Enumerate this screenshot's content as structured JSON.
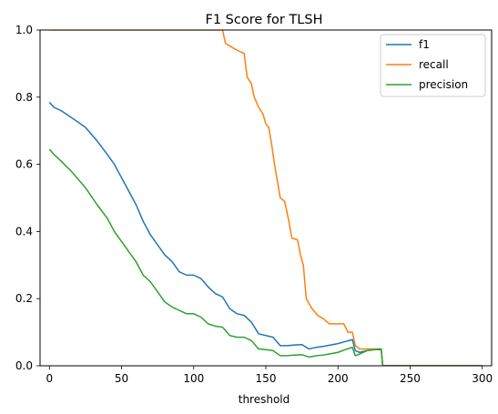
{
  "chart_data": {
    "type": "line",
    "title": "F1 Score for TLSH",
    "xlabel": "threshold",
    "ylabel": "",
    "xlim": [
      -6.5,
      306.5
    ],
    "ylim": [
      0,
      1
    ],
    "x_ticks": [
      0,
      50,
      100,
      150,
      200,
      250,
      300
    ],
    "y_ticks": [
      0.0,
      0.2,
      0.4,
      0.6,
      0.8,
      1.0
    ],
    "x_tick_labels": [
      "0",
      "50",
      "100",
      "150",
      "200",
      "250",
      "300"
    ],
    "y_tick_labels": [
      "0.0",
      "0.2",
      "0.4",
      "0.6",
      "0.8",
      "1.0"
    ],
    "grid": false,
    "legend_position": "top-right",
    "series": [
      {
        "name": "f1",
        "color": "#1f77b4",
        "points": [
          [
            0,
            0.785
          ],
          [
            3,
            0.77
          ],
          [
            8,
            0.76
          ],
          [
            15,
            0.74
          ],
          [
            25,
            0.71
          ],
          [
            33,
            0.67
          ],
          [
            40,
            0.63
          ],
          [
            45,
            0.6
          ],
          [
            50,
            0.56
          ],
          [
            55,
            0.52
          ],
          [
            60,
            0.48
          ],
          [
            65,
            0.43
          ],
          [
            70,
            0.39
          ],
          [
            75,
            0.36
          ],
          [
            80,
            0.33
          ],
          [
            85,
            0.31
          ],
          [
            90,
            0.28
          ],
          [
            95,
            0.27
          ],
          [
            100,
            0.27
          ],
          [
            105,
            0.26
          ],
          [
            110,
            0.235
          ],
          [
            115,
            0.215
          ],
          [
            120,
            0.205
          ],
          [
            125,
            0.17
          ],
          [
            130,
            0.155
          ],
          [
            135,
            0.15
          ],
          [
            140,
            0.13
          ],
          [
            145,
            0.095
          ],
          [
            150,
            0.09
          ],
          [
            155,
            0.085
          ],
          [
            160,
            0.06
          ],
          [
            165,
            0.06
          ],
          [
            170,
            0.062
          ],
          [
            175,
            0.063
          ],
          [
            180,
            0.05
          ],
          [
            185,
            0.055
          ],
          [
            190,
            0.058
          ],
          [
            195,
            0.062
          ],
          [
            200,
            0.066
          ],
          [
            205,
            0.072
          ],
          [
            210,
            0.078
          ],
          [
            212,
            0.045
          ],
          [
            215,
            0.04
          ],
          [
            220,
            0.045
          ],
          [
            225,
            0.048
          ],
          [
            230,
            0.048
          ],
          [
            231,
            0.0
          ],
          [
            300,
            0.0
          ]
        ]
      },
      {
        "name": "recall",
        "color": "#ff7f0e",
        "points": [
          [
            0,
            1.0
          ],
          [
            120,
            1.0
          ],
          [
            122,
            0.96
          ],
          [
            126,
            0.95
          ],
          [
            130,
            0.94
          ],
          [
            135,
            0.93
          ],
          [
            137,
            0.86
          ],
          [
            140,
            0.84
          ],
          [
            142,
            0.8
          ],
          [
            145,
            0.77
          ],
          [
            148,
            0.75
          ],
          [
            150,
            0.72
          ],
          [
            152,
            0.71
          ],
          [
            154,
            0.66
          ],
          [
            156,
            0.6
          ],
          [
            158,
            0.55
          ],
          [
            160,
            0.5
          ],
          [
            163,
            0.49
          ],
          [
            166,
            0.43
          ],
          [
            168,
            0.38
          ],
          [
            172,
            0.375
          ],
          [
            174,
            0.33
          ],
          [
            176,
            0.3
          ],
          [
            178,
            0.2
          ],
          [
            182,
            0.17
          ],
          [
            186,
            0.15
          ],
          [
            190,
            0.14
          ],
          [
            194,
            0.125
          ],
          [
            200,
            0.125
          ],
          [
            204,
            0.125
          ],
          [
            207,
            0.1
          ],
          [
            210,
            0.1
          ],
          [
            212,
            0.06
          ],
          [
            215,
            0.05
          ],
          [
            220,
            0.05
          ],
          [
            225,
            0.05
          ],
          [
            230,
            0.05
          ],
          [
            231,
            0.0
          ],
          [
            300,
            0.0
          ]
        ]
      },
      {
        "name": "precision",
        "color": "#2ca02c",
        "points": [
          [
            0,
            0.645
          ],
          [
            3,
            0.63
          ],
          [
            8,
            0.61
          ],
          [
            15,
            0.58
          ],
          [
            25,
            0.53
          ],
          [
            33,
            0.48
          ],
          [
            40,
            0.44
          ],
          [
            45,
            0.4
          ],
          [
            50,
            0.37
          ],
          [
            55,
            0.34
          ],
          [
            60,
            0.31
          ],
          [
            65,
            0.27
          ],
          [
            70,
            0.25
          ],
          [
            75,
            0.22
          ],
          [
            80,
            0.19
          ],
          [
            85,
            0.175
          ],
          [
            90,
            0.165
          ],
          [
            95,
            0.155
          ],
          [
            100,
            0.155
          ],
          [
            105,
            0.145
          ],
          [
            110,
            0.125
          ],
          [
            115,
            0.118
          ],
          [
            120,
            0.115
          ],
          [
            125,
            0.09
          ],
          [
            130,
            0.085
          ],
          [
            135,
            0.085
          ],
          [
            140,
            0.075
          ],
          [
            145,
            0.05
          ],
          [
            150,
            0.048
          ],
          [
            155,
            0.045
          ],
          [
            160,
            0.03
          ],
          [
            165,
            0.03
          ],
          [
            170,
            0.032
          ],
          [
            175,
            0.033
          ],
          [
            180,
            0.026
          ],
          [
            185,
            0.03
          ],
          [
            190,
            0.032
          ],
          [
            195,
            0.036
          ],
          [
            200,
            0.04
          ],
          [
            205,
            0.048
          ],
          [
            210,
            0.055
          ],
          [
            212,
            0.03
          ],
          [
            215,
            0.035
          ],
          [
            220,
            0.045
          ],
          [
            225,
            0.048
          ],
          [
            230,
            0.05
          ],
          [
            231,
            0.0
          ],
          [
            300,
            0.0
          ]
        ]
      }
    ]
  }
}
